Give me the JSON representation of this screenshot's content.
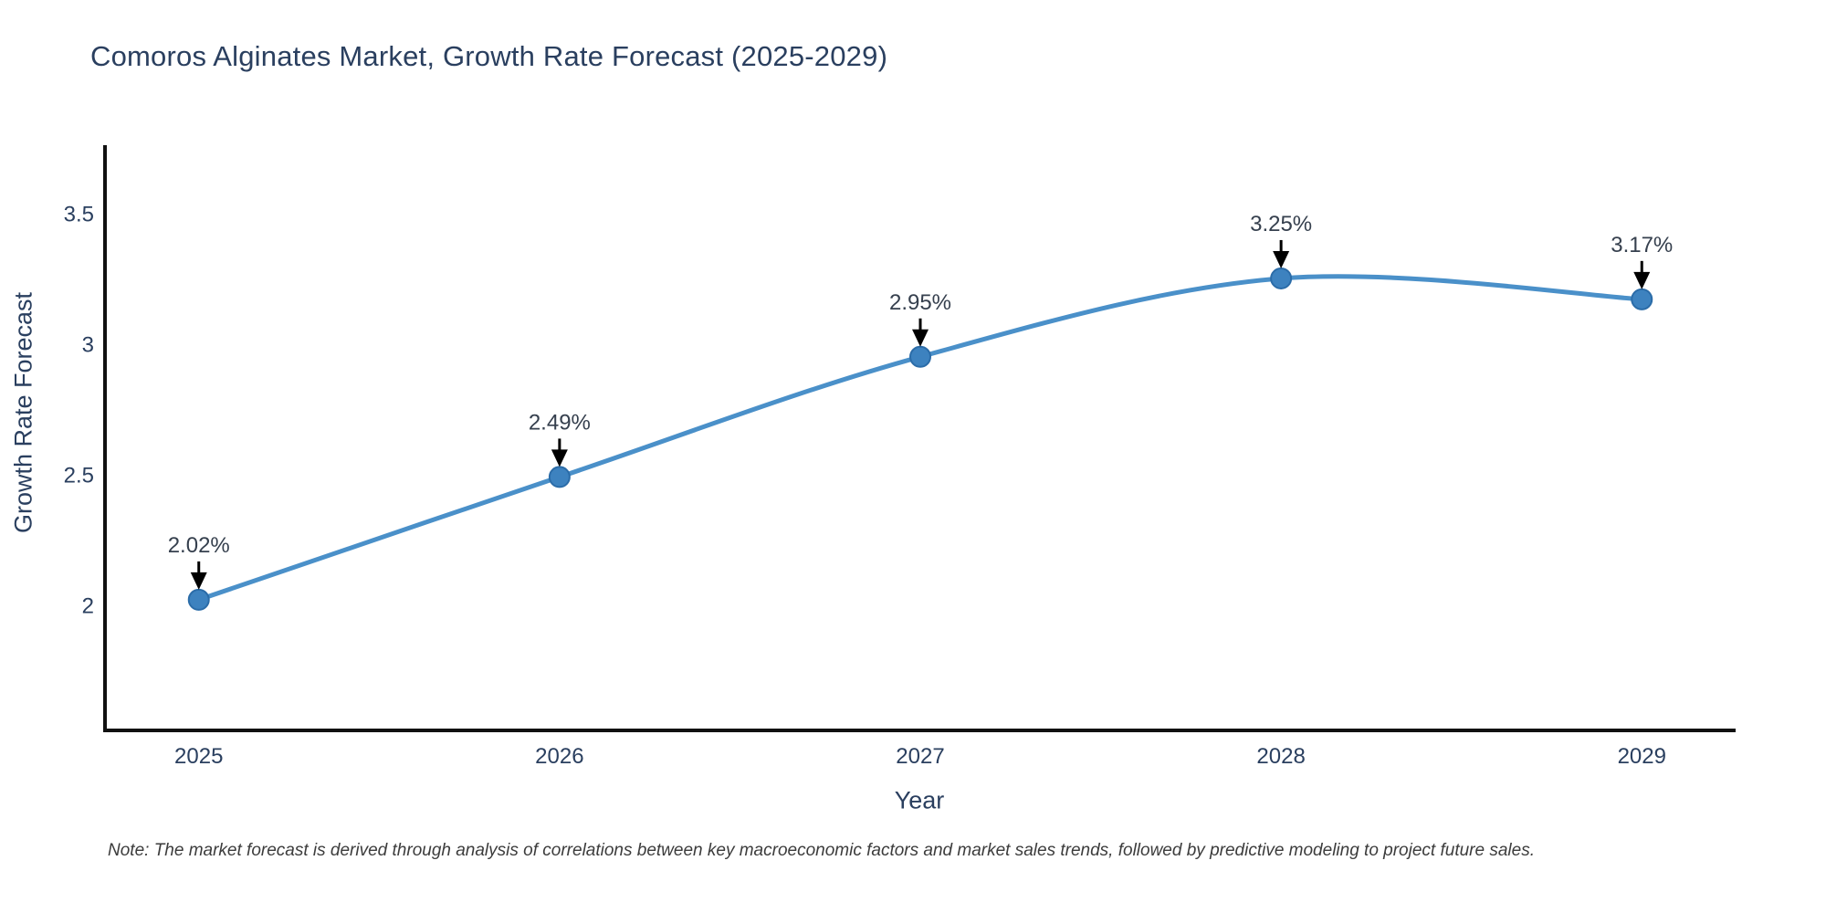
{
  "chart_data": {
    "type": "line",
    "title": "Comoros Alginates Market, Growth Rate Forecast (2025-2029)",
    "x": [
      2025,
      2026,
      2027,
      2028,
      2029
    ],
    "series": [
      {
        "name": "Growth Rate Forecast",
        "values": [
          2.02,
          2.49,
          2.95,
          3.25,
          3.17
        ]
      }
    ],
    "point_labels": [
      "2.02%",
      "2.49%",
      "2.95%",
      "3.25%",
      "3.17%"
    ],
    "xlabel": "Year",
    "ylabel": "Growth Rate Forecast",
    "xticks": [
      2025,
      2026,
      2027,
      2028,
      2029
    ],
    "yticks": [
      2,
      2.5,
      3,
      3.5
    ],
    "xlim": [
      2024.74,
      2029.26
    ],
    "ylim": [
      1.52,
      3.76
    ],
    "grid": false,
    "legend": "none",
    "line_shape": "spline",
    "colors": {
      "line": "#4a90c9",
      "marker": "#3d82bf",
      "marker_edge": "#2b6ca8",
      "arrow": "#000000",
      "tick_text": "#2a3f5f",
      "annotation_text": "#36404e",
      "spine": "#111111"
    }
  },
  "note": "Note: The market forecast is derived through analysis of correlations between key macroeconomic factors and market sales trends, followed by predictive modeling to project future sales."
}
